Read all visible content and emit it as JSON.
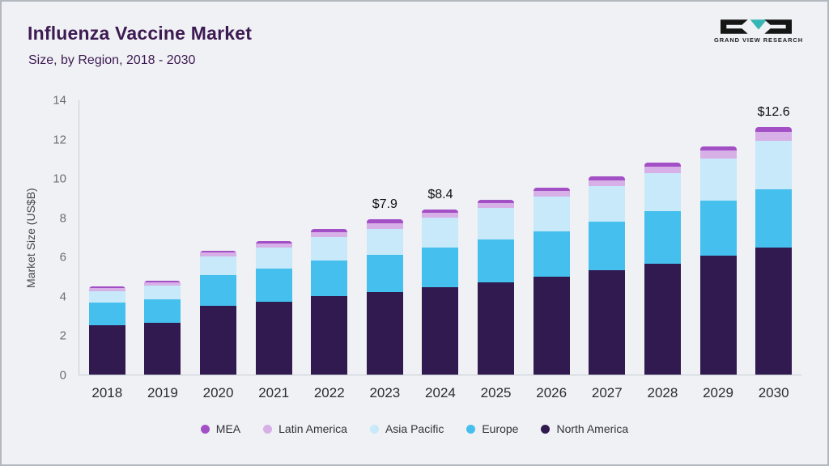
{
  "header": {
    "title": "Influenza Vaccine Market",
    "subtitle": "Size, by Region, 2018 - 2030",
    "logo_text": "GRAND VIEW RESEARCH"
  },
  "colors": {
    "title": "#3e1a52",
    "logo_teal": "#35b6b4",
    "page_background": "#eff1f4"
  },
  "chart_data": {
    "type": "bar",
    "stacked": true,
    "title": "Influenza Vaccine Market Size, by Region, 2018 - 2030",
    "xlabel": "",
    "ylabel": "Market Size (US$B)",
    "ylim": [
      0,
      14
    ],
    "yticks": [
      0,
      2,
      4,
      6,
      8,
      10,
      12,
      14
    ],
    "grid": false,
    "legend_position": "bottom",
    "categories": [
      "2018",
      "2019",
      "2020",
      "2021",
      "2022",
      "2023",
      "2024",
      "2025",
      "2026",
      "2027",
      "2028",
      "2029",
      "2030"
    ],
    "series": [
      {
        "name": "North America",
        "color": "#311a4f",
        "values": [
          2.5,
          2.65,
          3.5,
          3.7,
          4.0,
          4.2,
          4.45,
          4.7,
          5.0,
          5.3,
          5.65,
          6.05,
          6.45
        ]
      },
      {
        "name": "Europe",
        "color": "#45bfee",
        "values": [
          1.15,
          1.2,
          1.55,
          1.7,
          1.8,
          1.9,
          2.0,
          2.2,
          2.3,
          2.5,
          2.65,
          2.8,
          3.0
        ]
      },
      {
        "name": "Asia Pacific",
        "color": "#c7e9f9",
        "values": [
          0.6,
          0.7,
          0.95,
          1.05,
          1.2,
          1.3,
          1.55,
          1.6,
          1.75,
          1.8,
          1.95,
          2.15,
          2.45
        ]
      },
      {
        "name": "Latin America",
        "color": "#d8b0e8",
        "values": [
          0.15,
          0.15,
          0.2,
          0.2,
          0.25,
          0.3,
          0.25,
          0.25,
          0.3,
          0.3,
          0.35,
          0.4,
          0.45
        ]
      },
      {
        "name": "MEA",
        "color": "#a34fc6",
        "values": [
          0.1,
          0.1,
          0.1,
          0.15,
          0.15,
          0.2,
          0.15,
          0.15,
          0.15,
          0.2,
          0.2,
          0.2,
          0.25
        ]
      }
    ],
    "totals": [
      4.5,
      4.8,
      6.3,
      6.8,
      7.4,
      7.9,
      8.4,
      8.9,
      9.5,
      10.1,
      10.8,
      11.6,
      12.6
    ],
    "annotations": [
      {
        "category": "2023",
        "text": "$7.9"
      },
      {
        "category": "2024",
        "text": "$8.4"
      },
      {
        "category": "2030",
        "text": "$12.6"
      }
    ],
    "legend": [
      "MEA",
      "Latin America",
      "Asia Pacific",
      "Europe",
      "North America"
    ]
  }
}
